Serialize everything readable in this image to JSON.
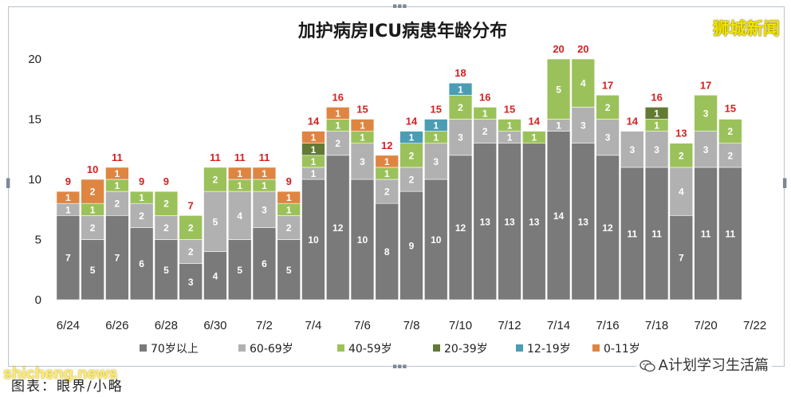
{
  "brand": "狮城新闻",
  "caption": "图表：眼界/小略",
  "watermark": "shicheng.news",
  "wechat": "A计划学习生活篇",
  "chart_data": {
    "type": "bar",
    "title": "加护病房ICU病患年龄分布",
    "stacked": true,
    "categories": [
      "6/24",
      "6/25",
      "6/26",
      "6/27",
      "6/28",
      "6/29",
      "6/30",
      "7/1",
      "7/2",
      "7/3",
      "7/4",
      "7/5",
      "7/6",
      "7/7",
      "7/8",
      "7/9",
      "7/10",
      "7/11",
      "7/12",
      "7/13",
      "7/14",
      "7/15",
      "7/16",
      "7/17",
      "7/18",
      "7/19",
      "7/20",
      "7/21",
      "7/22"
    ],
    "x_tick_labels": [
      "6/24",
      "6/26",
      "6/28",
      "6/30",
      "7/2",
      "7/4",
      "7/6",
      "7/8",
      "7/10",
      "7/12",
      "7/14",
      "7/16",
      "7/18",
      "7/20",
      "7/22"
    ],
    "ylim": [
      0,
      20
    ],
    "yticks": [
      0,
      5,
      10,
      15,
      20
    ],
    "grid": false,
    "legend_position": "bottom",
    "series": [
      {
        "name": "70岁以上",
        "color": "#7a7a7a",
        "label_color": "#ffffff",
        "values": [
          7,
          5,
          7,
          6,
          5,
          3,
          4,
          5,
          6,
          5,
          10,
          12,
          10,
          8,
          9,
          10,
          12,
          13,
          13,
          13,
          14,
          13,
          12,
          11,
          11,
          7,
          11,
          11,
          0
        ]
      },
      {
        "name": "60-69岁",
        "color": "#b1b1b1",
        "label_color": "#ffffff",
        "values": [
          1,
          2,
          2,
          2,
          2,
          2,
          5,
          4,
          3,
          2,
          1,
          2,
          3,
          2,
          2,
          3,
          3,
          2,
          1,
          0,
          1,
          3,
          3,
          3,
          3,
          4,
          3,
          2,
          0
        ]
      },
      {
        "name": "40-59岁",
        "color": "#9bc25a",
        "label_color": "#ffffff",
        "values": [
          0,
          1,
          1,
          1,
          2,
          2,
          2,
          1,
          1,
          1,
          1,
          1,
          1,
          1,
          2,
          1,
          2,
          1,
          1,
          1,
          5,
          4,
          2,
          0,
          1,
          2,
          3,
          2,
          0
        ]
      },
      {
        "name": "20-39岁",
        "color": "#637a35",
        "label_color": "#ffffff",
        "values": [
          0,
          0,
          0,
          0,
          0,
          0,
          0,
          0,
          0,
          0,
          1,
          0,
          0,
          0,
          0,
          0,
          0,
          0,
          0,
          0,
          0,
          0,
          0,
          0,
          1,
          0,
          0,
          0,
          0
        ]
      },
      {
        "name": "12-19岁",
        "color": "#4a9db3",
        "label_color": "#ffffff",
        "values": [
          0,
          0,
          0,
          0,
          0,
          0,
          0,
          0,
          0,
          0,
          0,
          0,
          0,
          0,
          1,
          1,
          1,
          0,
          0,
          0,
          0,
          0,
          0,
          0,
          0,
          0,
          0,
          0,
          0
        ]
      },
      {
        "name": "0-11岁",
        "color": "#df8542",
        "label_color": "#ffffff",
        "values": [
          1,
          2,
          1,
          0,
          0,
          0,
          0,
          1,
          1,
          1,
          1,
          1,
          1,
          1,
          0,
          0,
          0,
          0,
          0,
          0,
          0,
          0,
          0,
          0,
          0,
          0,
          0,
          0,
          0
        ]
      }
    ],
    "totals": [
      9,
      10,
      11,
      9,
      9,
      7,
      11,
      11,
      11,
      9,
      14,
      16,
      15,
      12,
      14,
      15,
      18,
      16,
      15,
      14,
      20,
      20,
      17,
      14,
      16,
      13,
      17,
      15,
      null
    ],
    "total_color": "#d62020"
  }
}
